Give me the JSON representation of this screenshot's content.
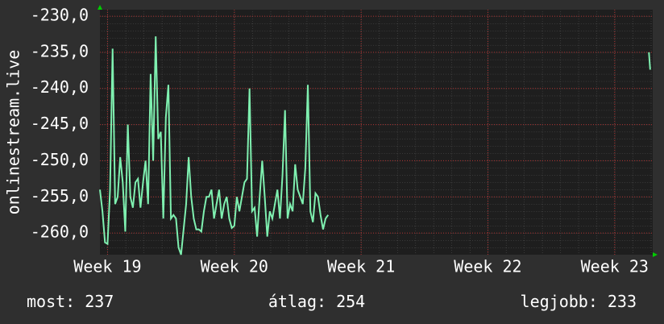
{
  "chart_data": {
    "type": "line",
    "ylabel": "onlinestream.live",
    "x": [
      18.94,
      18.96,
      18.98,
      19.0,
      19.02,
      19.04,
      19.06,
      19.08,
      19.1,
      19.12,
      19.14,
      19.16,
      19.18,
      19.2,
      19.22,
      19.24,
      19.26,
      19.28,
      19.3,
      19.32,
      19.34,
      19.36,
      19.38,
      19.4,
      19.42,
      19.44,
      19.46,
      19.48,
      19.5,
      19.52,
      19.54,
      19.56,
      19.58,
      19.6,
      19.62,
      19.64,
      19.66,
      19.68,
      19.7,
      19.72,
      19.74,
      19.76,
      19.78,
      19.8,
      19.82,
      19.84,
      19.86,
      19.88,
      19.9,
      19.92,
      19.94,
      19.96,
      19.98,
      20.0,
      20.02,
      20.04,
      20.06,
      20.08,
      20.1,
      20.12,
      20.14,
      20.16,
      20.18,
      20.2,
      20.22,
      20.24,
      20.26,
      20.28,
      20.3,
      20.32,
      20.34,
      20.36,
      20.38,
      20.4,
      20.42,
      20.44,
      20.46,
      20.48,
      20.5,
      20.52,
      20.54,
      20.56,
      20.58,
      20.6,
      20.62,
      20.64,
      20.66,
      20.68,
      20.7,
      20.72,
      20.74,
      20.76,
      23.27,
      23.28
    ],
    "series": [
      {
        "name": "onlinestream.live",
        "color": "#7ff0b0",
        "values": [
          -254,
          -257,
          -261.3,
          -261.5,
          -254,
          -234.5,
          -256,
          -255,
          -249.5,
          -253,
          -259.8,
          -245,
          -255,
          -256.5,
          -253,
          -252.5,
          -256.5,
          -253,
          -250,
          -256,
          -238,
          -250,
          -232.8,
          -247,
          -246,
          -258,
          -244,
          -239.5,
          -258,
          -257.5,
          -258,
          -262,
          -263,
          -259.5,
          -256,
          -249.5,
          -255,
          -258,
          -259.5,
          -259.5,
          -259.8,
          -257,
          -255,
          -255,
          -254,
          -258,
          -256,
          -254,
          -258,
          -256,
          -255,
          -258,
          -259.3,
          -259,
          -255,
          -257,
          -255,
          -253,
          -252.5,
          -240,
          -257,
          -256.5,
          -260.5,
          -255,
          -250,
          -255,
          -260.5,
          -257,
          -258,
          -256,
          -254,
          -258,
          -252,
          -243,
          -258,
          -256,
          -257,
          -250.5,
          -254,
          -255,
          -256,
          -251,
          -239.5,
          -257,
          -258.5,
          -254.5,
          -255,
          -257.5,
          -259.5,
          -258,
          -257.5,
          null,
          -235,
          -237.4
        ]
      }
    ],
    "xlim": [
      18.94,
      23.3
    ],
    "xticks": [
      {
        "value": 19,
        "label": "Week 19"
      },
      {
        "value": 20,
        "label": "Week 20"
      },
      {
        "value": 21,
        "label": "Week 21"
      },
      {
        "value": 22,
        "label": "Week 22"
      },
      {
        "value": 23,
        "label": "Week 23"
      }
    ],
    "ylim": [
      -263,
      -229.1
    ],
    "yticks": [
      {
        "value": -230,
        "label": "-230,0"
      },
      {
        "value": -235,
        "label": "-235,0"
      },
      {
        "value": -240,
        "label": "-240,0"
      },
      {
        "value": -245,
        "label": "-245,0"
      },
      {
        "value": -250,
        "label": "-250,0"
      },
      {
        "value": -255,
        "label": "-255,0"
      },
      {
        "value": -260,
        "label": "-260,0"
      }
    ],
    "grid": true,
    "stats": [
      {
        "label": "most:",
        "value": 237
      },
      {
        "label": "átlag:",
        "value": 254
      },
      {
        "label": "legjobb:",
        "value": 233
      }
    ]
  }
}
